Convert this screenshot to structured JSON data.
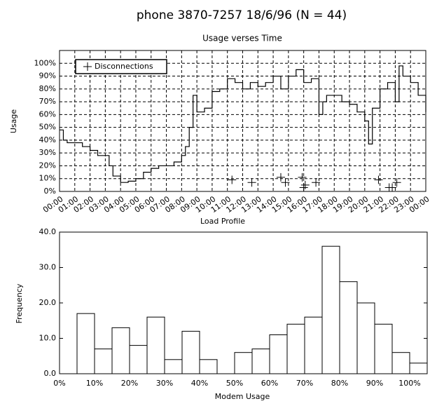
{
  "title": "phone 3870-7257 18/6/96 (N = 44)",
  "chart_data": [
    {
      "type": "line",
      "title": "Usage verses Time",
      "x_label": "Load Profile",
      "y_label": "Usage",
      "step": "post",
      "color": "#000000",
      "grid": true,
      "legend": "upper left",
      "x": [
        0,
        0.25,
        0.5,
        1,
        1.5,
        2,
        2.5,
        3,
        3.25,
        3.5,
        4,
        4.5,
        5,
        5.5,
        6,
        6.5,
        7,
        7.5,
        8,
        8.25,
        8.5,
        8.75,
        9,
        9.5,
        10,
        10.5,
        11,
        11.5,
        12,
        12.5,
        13,
        13.5,
        14,
        14.5,
        15,
        15.5,
        16,
        16.5,
        17,
        17.25,
        17.5,
        18,
        18.5,
        19,
        19.5,
        20,
        20.25,
        20.5,
        21,
        21.5,
        22,
        22.25,
        22.5,
        23,
        23.5,
        24
      ],
      "values": [
        48,
        40,
        38,
        38,
        35,
        32,
        28,
        28,
        20,
        12,
        7,
        8,
        10,
        15,
        18,
        20,
        20,
        23,
        28,
        35,
        50,
        75,
        62,
        65,
        78,
        80,
        88,
        85,
        80,
        85,
        82,
        85,
        90,
        80,
        90,
        95,
        85,
        88,
        60,
        70,
        75,
        75,
        70,
        68,
        62,
        55,
        37,
        65,
        80,
        85,
        70,
        98,
        90,
        85,
        75,
        62
      ],
      "overlay": {
        "type": "scatter",
        "name": "Disconnections",
        "marker": "+",
        "color": "#000000",
        "x": [
          11.3,
          12.6,
          14.5,
          14.8,
          15.9,
          16.0,
          16.1,
          16.8,
          20.9,
          21.6,
          21.8,
          22.1
        ],
        "values": [
          9,
          7,
          11,
          7,
          11,
          3,
          5,
          7,
          9,
          3,
          3,
          7
        ]
      },
      "xlim": [
        0,
        24
      ],
      "ylim": [
        0,
        110
      ],
      "xticks": [
        {
          "value": 0,
          "label": "00:00"
        },
        {
          "value": 1,
          "label": "01:00"
        },
        {
          "value": 2,
          "label": "02:00"
        },
        {
          "value": 3,
          "label": "03:00"
        },
        {
          "value": 4,
          "label": "04:00"
        },
        {
          "value": 5,
          "label": "05:00"
        },
        {
          "value": 6,
          "label": "06:00"
        },
        {
          "value": 7,
          "label": "07:00"
        },
        {
          "value": 8,
          "label": "08:00"
        },
        {
          "value": 9,
          "label": "09:00"
        },
        {
          "value": 10,
          "label": "10:00"
        },
        {
          "value": 11,
          "label": "11:00"
        },
        {
          "value": 12,
          "label": "12:00"
        },
        {
          "value": 13,
          "label": "13:00"
        },
        {
          "value": 14,
          "label": "14:00"
        },
        {
          "value": 15,
          "label": "15:00"
        },
        {
          "value": 16,
          "label": "16:00"
        },
        {
          "value": 17,
          "label": "17:00"
        },
        {
          "value": 18,
          "label": "18:00"
        },
        {
          "value": 19,
          "label": "19:00"
        },
        {
          "value": 20,
          "label": "20:00"
        },
        {
          "value": 21,
          "label": "21:00"
        },
        {
          "value": 22,
          "label": "22:00"
        },
        {
          "value": 23,
          "label": "23:00"
        },
        {
          "value": 24,
          "label": "00:00"
        }
      ],
      "yticks": [
        {
          "value": 0,
          "label": "0%"
        },
        {
          "value": 10,
          "label": "10%"
        },
        {
          "value": 20,
          "label": "20%"
        },
        {
          "value": 30,
          "label": "30%"
        },
        {
          "value": 40,
          "label": "40%"
        },
        {
          "value": 50,
          "label": "50%"
        },
        {
          "value": 60,
          "label": "60%"
        },
        {
          "value": 70,
          "label": "70%"
        },
        {
          "value": 80,
          "label": "80%"
        },
        {
          "value": 90,
          "label": "90%"
        },
        {
          "value": 100,
          "label": "100%"
        }
      ]
    },
    {
      "type": "histogram",
      "x_label": "Modem Usage",
      "y_label": "Frequency",
      "color": "#ffffff",
      "grid": false,
      "bins": [
        5,
        10,
        15,
        20,
        25,
        30,
        35,
        40,
        45,
        50,
        55,
        60,
        65,
        70,
        75,
        80,
        85,
        90,
        95,
        100,
        105
      ],
      "values": [
        17,
        7,
        13,
        8,
        16,
        4,
        12,
        4,
        0,
        6,
        7,
        11,
        14,
        16,
        36,
        26,
        20,
        14,
        6,
        3
      ],
      "xlim": [
        0,
        105
      ],
      "ylim": [
        0,
        40
      ],
      "xticks": [
        {
          "value": 0,
          "label": "0%"
        },
        {
          "value": 10,
          "label": "10%"
        },
        {
          "value": 20,
          "label": "20%"
        },
        {
          "value": 30,
          "label": "30%"
        },
        {
          "value": 40,
          "label": "40%"
        },
        {
          "value": 50,
          "label": "50%"
        },
        {
          "value": 60,
          "label": "60%"
        },
        {
          "value": 70,
          "label": "70%"
        },
        {
          "value": 80,
          "label": "80%"
        },
        {
          "value": 90,
          "label": "90%"
        },
        {
          "value": 100,
          "label": "100%"
        }
      ],
      "yticks": [
        {
          "value": 0,
          "label": "0.0"
        },
        {
          "value": 10,
          "label": "10.0"
        },
        {
          "value": 20,
          "label": "20.0"
        },
        {
          "value": 30,
          "label": "30.0"
        },
        {
          "value": 40,
          "label": "40.0"
        }
      ]
    }
  ]
}
